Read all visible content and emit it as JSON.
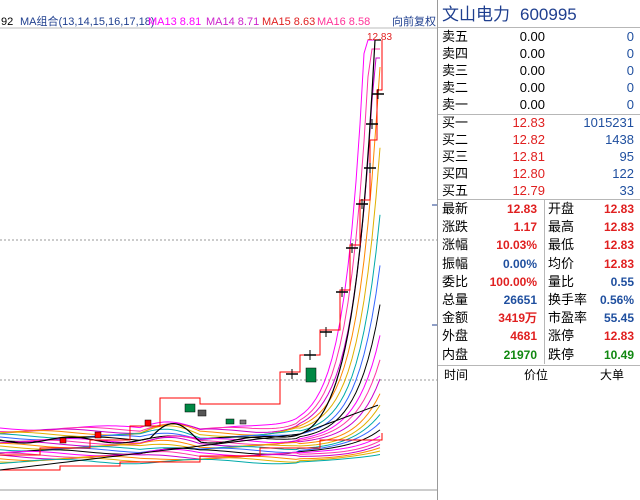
{
  "chart": {
    "left_axis_fragment": "92",
    "ma_header": {
      "group_label": "MA组合(13,14,15,16,17,18)",
      "ma13": "MA13 8.81",
      "ma14": "MA14 8.71",
      "ma15": "MA15 8.63",
      "ma16": "MA16 8.58",
      "adjust_label": "向前复权"
    },
    "top_price_label": "12.83",
    "colors": {
      "price_line": "#000000",
      "limit_line": "#ff0000",
      "ma_colors": [
        "#ff00ff",
        "#ff33aa",
        "#cc00cc",
        "#ff8800",
        "#e0b000",
        "#00aaaa",
        "#3366ff",
        "#000000"
      ],
      "green_candle": "#008844",
      "red_candle": "#ff0000",
      "grid": "#999999"
    }
  },
  "quote": {
    "stock_name": "文山电力",
    "stock_code": "600995",
    "sell": [
      {
        "label": "卖五",
        "price": "0.00",
        "volume": "0"
      },
      {
        "label": "卖四",
        "price": "0.00",
        "volume": "0"
      },
      {
        "label": "卖三",
        "price": "0.00",
        "volume": "0"
      },
      {
        "label": "卖二",
        "price": "0.00",
        "volume": "0"
      },
      {
        "label": "卖一",
        "price": "0.00",
        "volume": "0"
      }
    ],
    "buy": [
      {
        "label": "买一",
        "price": "12.83",
        "volume": "1015231"
      },
      {
        "label": "买二",
        "price": "12.82",
        "volume": "1438"
      },
      {
        "label": "买三",
        "price": "12.81",
        "volume": "95"
      },
      {
        "label": "买四",
        "price": "12.80",
        "volume": "122"
      },
      {
        "label": "买五",
        "price": "12.79",
        "volume": "33"
      }
    ],
    "stats": [
      {
        "l1": "最新",
        "v1": "12.83",
        "c1": "red",
        "l2": "开盘",
        "v2": "12.83",
        "c2": "red"
      },
      {
        "l1": "涨跌",
        "v1": "1.17",
        "c1": "red",
        "l2": "最高",
        "v2": "12.83",
        "c2": "red"
      },
      {
        "l1": "涨幅",
        "v1": "10.03%",
        "c1": "red",
        "l2": "最低",
        "v2": "12.83",
        "c2": "red"
      },
      {
        "l1": "振幅",
        "v1": "0.00%",
        "c1": "blue",
        "l2": "均价",
        "v2": "12.83",
        "c2": "red"
      },
      {
        "l1": "委比",
        "v1": "100.00%",
        "c1": "red",
        "l2": "量比",
        "v2": "0.55",
        "c2": "blue"
      },
      {
        "l1": "总量",
        "v1": "26651",
        "c1": "blue",
        "l2": "换手率",
        "v2": "0.56%",
        "c2": "blue"
      },
      {
        "l1": "金额",
        "v1": "3419万",
        "c1": "red",
        "l2": "市盈率",
        "v2": "55.45",
        "c2": "blue"
      },
      {
        "l1": "外盘",
        "v1": "4681",
        "c1": "red",
        "l2": "涨停",
        "v2": "12.83",
        "c2": "red"
      },
      {
        "l1": "内盘",
        "v1": "21970",
        "c1": "green",
        "l2": "跌停",
        "v2": "10.49",
        "c2": "green"
      }
    ],
    "trades_header": {
      "time": "时间",
      "price": "价位",
      "volume": "大单"
    }
  }
}
